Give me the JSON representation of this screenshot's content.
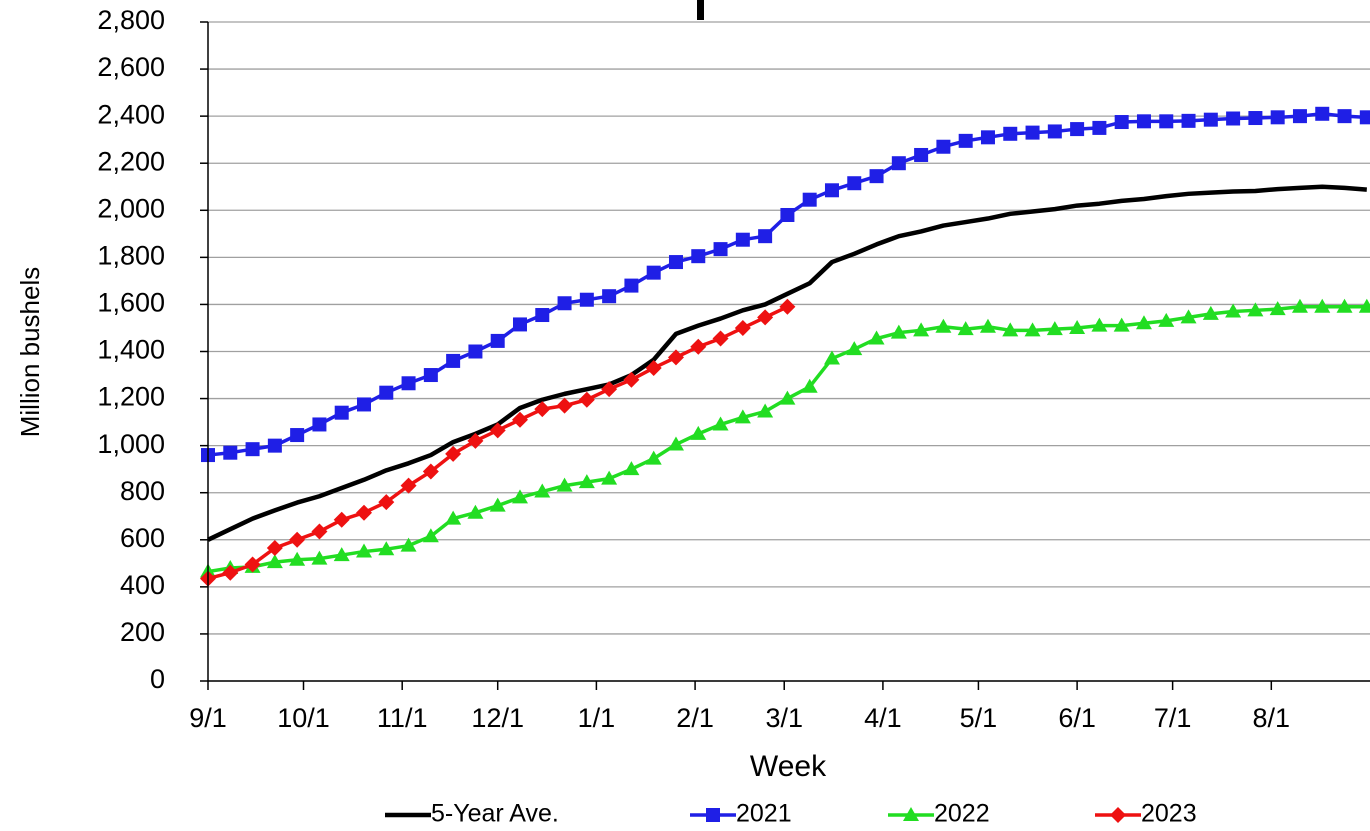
{
  "chart_data": {
    "type": "line",
    "x_label": "Week",
    "y_label": "Million bushels",
    "x": [
      0,
      7,
      14,
      21,
      28,
      35,
      42,
      49,
      56,
      63,
      70,
      77,
      84,
      91,
      98,
      105,
      112,
      119,
      126,
      133,
      140,
      147,
      154,
      161,
      168,
      175,
      182,
      189,
      196,
      203,
      210,
      217,
      224,
      231,
      238,
      245,
      252,
      259,
      266,
      273,
      280,
      287,
      294,
      301,
      308,
      315,
      322,
      329,
      336,
      343,
      350,
      357,
      364
    ],
    "xlim": [
      0,
      365
    ],
    "xticks": [
      {
        "value": 0,
        "label": "9/1"
      },
      {
        "value": 30,
        "label": "10/1"
      },
      {
        "value": 61,
        "label": "11/1"
      },
      {
        "value": 91,
        "label": "12/1"
      },
      {
        "value": 122,
        "label": "1/1"
      },
      {
        "value": 153,
        "label": "2/1"
      },
      {
        "value": 181,
        "label": "3/1"
      },
      {
        "value": 212,
        "label": "4/1"
      },
      {
        "value": 242,
        "label": "5/1"
      },
      {
        "value": 273,
        "label": "6/1"
      },
      {
        "value": 303,
        "label": "7/1"
      },
      {
        "value": 334,
        "label": "8/1"
      }
    ],
    "ylim": [
      0,
      2800
    ],
    "yticks": [
      0,
      200,
      400,
      600,
      800,
      {
        "value": 1000,
        "label": "1,000"
      },
      {
        "value": 1200,
        "label": "1,200"
      },
      {
        "value": 1400,
        "label": "1,400"
      },
      {
        "value": 1600,
        "label": "1,600"
      },
      {
        "value": 1800,
        "label": "1,800"
      },
      {
        "value": 2000,
        "label": "2,000"
      },
      {
        "value": 2200,
        "label": "2,200"
      },
      {
        "value": 2400,
        "label": "2,400"
      },
      {
        "value": 2600,
        "label": "2,600"
      },
      {
        "value": 2800,
        "label": "2,800"
      }
    ],
    "grid": true,
    "legend": "bottom",
    "series": [
      {
        "name": "5-Year Ave.",
        "color": "#000000",
        "marker": "none",
        "values": [
          600,
          645,
          690,
          725,
          758,
          785,
          820,
          855,
          895,
          925,
          960,
          1015,
          1050,
          1090,
          1160,
          1195,
          1220,
          1240,
          1260,
          1300,
          1365,
          1475,
          1510,
          1540,
          1575,
          1600,
          1645,
          1690,
          1780,
          1815,
          1855,
          1890,
          1910,
          1935,
          1950,
          1965,
          1985,
          1995,
          2005,
          2020,
          2028,
          2040,
          2048,
          2060,
          2070,
          2075,
          2080,
          2082,
          2090,
          2095,
          2100,
          2095,
          2088
        ]
      },
      {
        "name": "2021",
        "color": "#1f1fe6",
        "marker": "square",
        "values": [
          960,
          970,
          985,
          1000,
          1045,
          1090,
          1140,
          1175,
          1225,
          1265,
          1300,
          1360,
          1400,
          1445,
          1515,
          1555,
          1605,
          1620,
          1635,
          1680,
          1735,
          1780,
          1805,
          1835,
          1875,
          1890,
          1980,
          2045,
          2085,
          2115,
          2145,
          2200,
          2235,
          2270,
          2295,
          2310,
          2325,
          2330,
          2335,
          2345,
          2350,
          2375,
          2378,
          2378,
          2380,
          2385,
          2390,
          2392,
          2395,
          2400,
          2410,
          2400,
          2395
        ]
      },
      {
        "name": "2022",
        "color": "#22dd22",
        "marker": "triangle",
        "values": [
          465,
          480,
          485,
          505,
          515,
          520,
          535,
          550,
          560,
          575,
          615,
          690,
          715,
          745,
          780,
          805,
          830,
          845,
          860,
          900,
          945,
          1005,
          1050,
          1090,
          1120,
          1145,
          1200,
          1250,
          1370,
          1410,
          1455,
          1480,
          1490,
          1505,
          1495,
          1505,
          1490,
          1490,
          1495,
          1500,
          1510,
          1510,
          1520,
          1530,
          1545,
          1560,
          1570,
          1575,
          1580,
          1590,
          1590,
          1590,
          1590
        ]
      },
      {
        "name": "2023",
        "color": "#ee1111",
        "marker": "diamond",
        "values": [
          435,
          460,
          495,
          565,
          600,
          635,
          685,
          715,
          760,
          830,
          890,
          965,
          1020,
          1065,
          1110,
          1155,
          1170,
          1195,
          1240,
          1280,
          1330,
          1375,
          1420,
          1455,
          1500,
          1545,
          1590,
          null,
          null,
          null,
          null,
          null,
          null,
          null,
          null,
          null,
          null,
          null,
          null,
          null,
          null,
          null,
          null,
          null,
          null,
          null,
          null,
          null,
          null,
          null,
          null,
          null,
          null
        ]
      }
    ]
  }
}
